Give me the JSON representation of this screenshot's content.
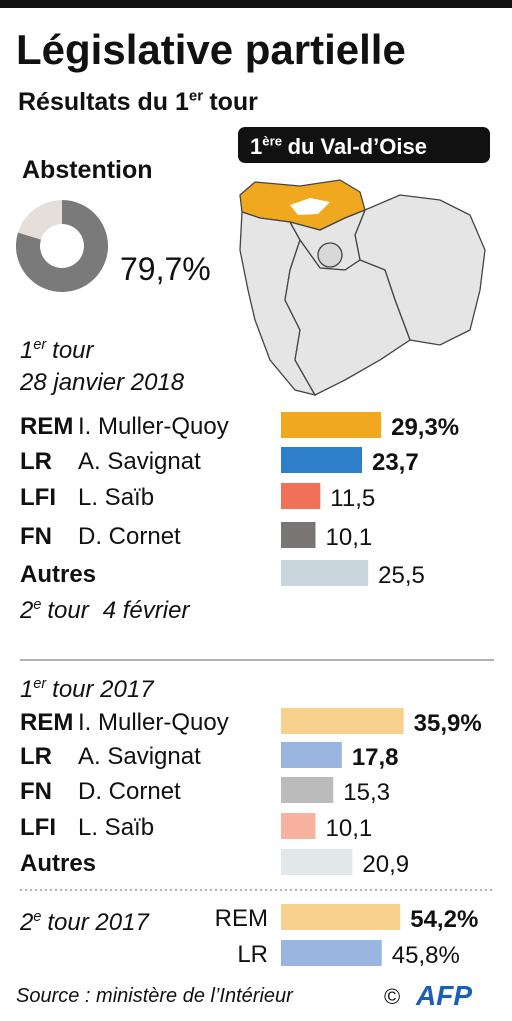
{
  "title": "Législative partielle",
  "subtitle": {
    "text": "Résultats du 1",
    "sup": "er",
    "rest": "tour"
  },
  "region": {
    "text": "1",
    "sup": "ère",
    "rest": "du Val-d’Oise"
  },
  "chart_data": [
    {
      "type": "pie",
      "title": "Abstention",
      "values": [
        79.7
      ],
      "value_labels": [
        "79,7%"
      ],
      "color": "#7a7a7a",
      "rest_color": "#e4dfda"
    },
    {
      "type": "bar",
      "heading": {
        "text": "1",
        "sup": "er",
        "rest": "tour"
      },
      "subtitle": "28 janvier 2018",
      "categories": [
        "REM",
        "LR",
        "LFI",
        "FN",
        "Autres"
      ],
      "candidates": [
        "I. Muller-Quoy",
        "A. Savignat",
        "L. Saïb",
        "D. Cornet",
        null
      ],
      "values": [
        29.3,
        23.7,
        11.5,
        10.1,
        25.5
      ],
      "value_labels": [
        "29,3%",
        "23,7",
        "11,5",
        "10,1",
        "25,5"
      ],
      "colors": [
        "#f0a81e",
        "#2d7fc9",
        "#f07058",
        "#7a7676",
        "#c9d6de"
      ],
      "bold_labels": [
        true,
        true,
        false,
        false,
        false
      ],
      "xlim": [
        0,
        60
      ],
      "note": {
        "text": "2",
        "sup": "e",
        "rest": "tour",
        "date": "4 février"
      }
    },
    {
      "type": "bar",
      "heading": {
        "text": "1",
        "sup": "er",
        "rest": "tour 2017"
      },
      "categories": [
        "REM",
        "LR",
        "FN",
        "LFI",
        "Autres"
      ],
      "candidates": [
        "I. Muller-Quoy",
        "A. Savignat",
        "D. Cornet",
        "L. Saïb",
        null
      ],
      "values": [
        35.9,
        17.8,
        15.3,
        10.1,
        20.9
      ],
      "value_labels": [
        "35,9%",
        "17,8",
        "15,3",
        "10,1",
        "20,9"
      ],
      "colors": [
        "#f7d08e",
        "#9ab6e0",
        "#bbbbbb",
        "#f8b2a0",
        "#e2e8ea"
      ],
      "bold_labels": [
        true,
        true,
        false,
        false,
        false
      ],
      "xlim": [
        0,
        60
      ]
    },
    {
      "type": "bar",
      "heading": {
        "text": "2",
        "sup": "e",
        "rest": "tour 2017"
      },
      "categories": [
        "REM",
        "LR"
      ],
      "values": [
        54.2,
        45.8
      ],
      "value_labels": [
        "54,2%",
        "45,8%"
      ],
      "colors": [
        "#f7d08e",
        "#9ab6e0"
      ],
      "bold_labels": [
        true,
        false
      ],
      "xlim": [
        0,
        100
      ]
    }
  ],
  "source": "Source : ministère de l’Intérieur",
  "copyright": "©",
  "logo": "AFP"
}
